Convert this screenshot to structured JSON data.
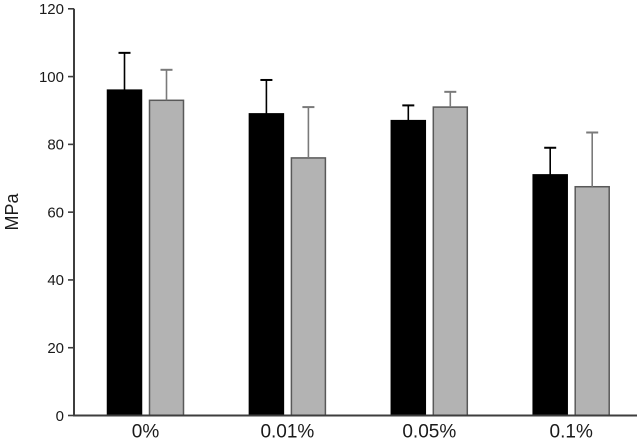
{
  "figure": {
    "background": "#ffffff"
  },
  "chart_data": {
    "type": "bar",
    "title": "",
    "xlabel": "",
    "ylabel": "MPa",
    "categories": [
      "0%",
      "0.01%",
      "0.05%",
      "0.1%"
    ],
    "series": [
      {
        "name": "black",
        "fill": "#000000",
        "stroke": "#000000",
        "error_color": "#000000",
        "values": [
          96,
          89,
          87,
          71
        ],
        "errors_plus": [
          11,
          10,
          4.5,
          8
        ]
      },
      {
        "name": "gray",
        "fill": "#b3b3b3",
        "stroke": "#595959",
        "error_color": "#7a7a7a",
        "values": [
          93,
          76,
          91,
          67.5
        ],
        "errors_plus": [
          9,
          15,
          4.5,
          16
        ]
      }
    ],
    "ylim": [
      0,
      120
    ],
    "yticks": [
      0,
      20,
      40,
      60,
      80,
      100,
      120
    ],
    "grid": false,
    "legend": "none",
    "error_bars": "upper-only",
    "axis_color": "#3d3d3d",
    "text_color": "#1a1a1a"
  }
}
